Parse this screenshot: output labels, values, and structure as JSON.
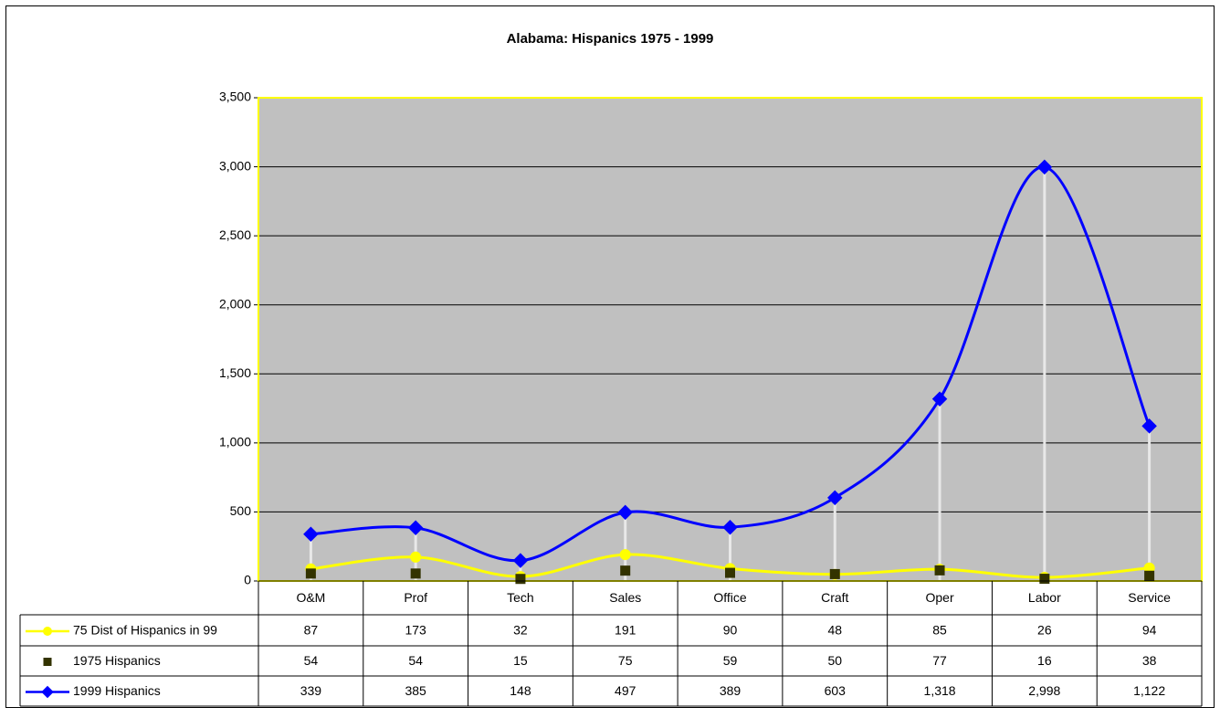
{
  "chart_data": {
    "type": "line",
    "title": "Alabama: Hispanics 1975 - 1999",
    "categories": [
      "O&M",
      "Prof",
      "Tech",
      "Sales",
      "Office",
      "Craft",
      "Oper",
      "Labor",
      "Service"
    ],
    "series": [
      {
        "name": "75 Dist of Hispanics in 99",
        "color": "#ffff00",
        "marker": "circle",
        "values": [
          87,
          173,
          32,
          191,
          90,
          48,
          85,
          26,
          94
        ]
      },
      {
        "name": "1975 Hispanics",
        "color": "#333300",
        "marker": "square",
        "line": false,
        "values": [
          54,
          54,
          15,
          75,
          59,
          50,
          77,
          16,
          38
        ]
      },
      {
        "name": "1999 Hispanics",
        "color": "#0000ff",
        "marker": "diamond",
        "values": [
          339,
          385,
          148,
          497,
          389,
          603,
          1318,
          2998,
          1122
        ],
        "value_labels": [
          "339",
          "385",
          "148",
          "497",
          "389",
          "603",
          "1,318",
          "2,998",
          "1,122"
        ]
      }
    ],
    "ylim": [
      0,
      3500
    ],
    "yticks": [
      0,
      500,
      {
        "value": 1000,
        "label": "1,000"
      },
      {
        "value": 1500,
        "label": "1,500"
      },
      {
        "value": 2000,
        "label": "2,000"
      },
      {
        "value": 2500,
        "label": "2,500"
      },
      {
        "value": 3000,
        "label": "3,000"
      },
      {
        "value": 3500,
        "label": "3,500"
      }
    ],
    "grid": true,
    "plot_background": "#c0c0c0"
  }
}
